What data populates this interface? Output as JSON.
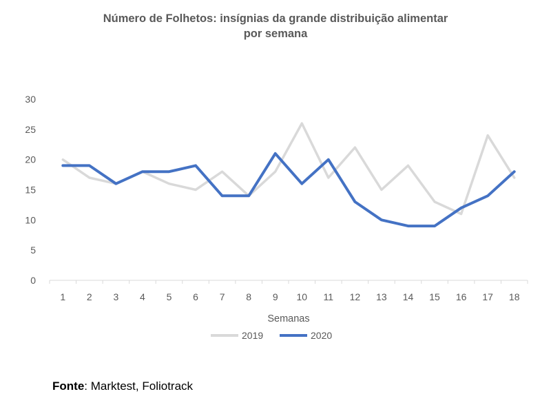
{
  "chart_data": {
    "type": "line",
    "title_line1": "Número de Folhetos: insígnias da grande distribuição alimentar",
    "title_line2": "por semana",
    "xlabel": "Semanas",
    "ylabel": "",
    "categories": [
      "1",
      "2",
      "3",
      "4",
      "5",
      "6",
      "7",
      "8",
      "9",
      "10",
      "11",
      "12",
      "13",
      "14",
      "15",
      "16",
      "17",
      "18"
    ],
    "ylim": [
      0,
      30
    ],
    "yticks": [
      "0",
      "5",
      "10",
      "15",
      "20",
      "25",
      "30"
    ],
    "grid": false,
    "legend_position": "bottom",
    "series": [
      {
        "name": "2019",
        "color": "#d9d9d9",
        "values": [
          20,
          17,
          16,
          18,
          16,
          15,
          18,
          14,
          18,
          26,
          17,
          22,
          15,
          19,
          13,
          11,
          24,
          17
        ]
      },
      {
        "name": "2020",
        "color": "#4472c4",
        "values": [
          19,
          19,
          16,
          18,
          18,
          19,
          14,
          14,
          21,
          16,
          20,
          13,
          10,
          9,
          9,
          12,
          14,
          18
        ]
      }
    ]
  },
  "source": {
    "label": "Fonte",
    "text": ": Marktest, Foliotrack"
  }
}
